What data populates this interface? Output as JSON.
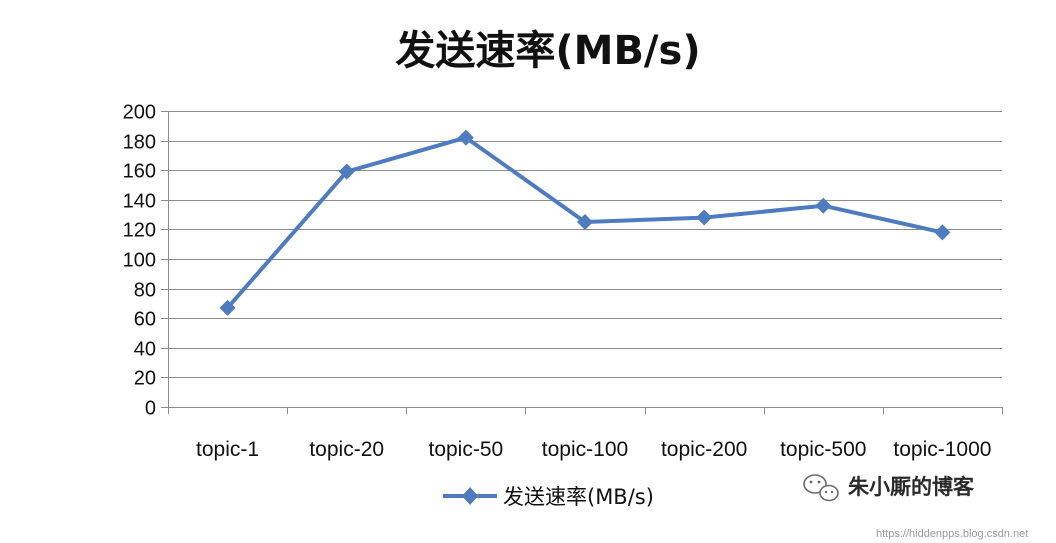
{
  "chart_data": {
    "type": "line",
    "title": "发送速率(MB/s)",
    "categories": [
      "topic-1",
      "topic-20",
      "topic-50",
      "topic-100",
      "topic-200",
      "topic-500",
      "topic-1000"
    ],
    "series": [
      {
        "name": "发送速率(MB/s)",
        "values": [
          67,
          159,
          182,
          125,
          128,
          136,
          118
        ],
        "color": "#4f7bbf",
        "marker": "diamond"
      }
    ],
    "ylim": [
      0,
      200
    ],
    "yticks": [
      0,
      20,
      40,
      60,
      80,
      100,
      120,
      140,
      160,
      180,
      200
    ],
    "grid": true,
    "legend_position": "bottom"
  },
  "watermark": {
    "text": "朱小厮的博客",
    "icon": "wechat-icon",
    "url": "https://hiddenpps.blog.csdn.net"
  }
}
